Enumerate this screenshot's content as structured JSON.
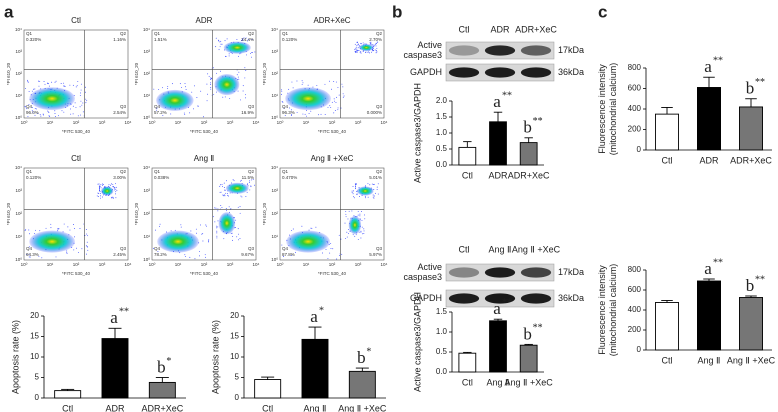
{
  "panel_labels": [
    "a",
    "b",
    "c"
  ],
  "flow": {
    "x_label": "*FITC 530_40",
    "y_label": "*PI 610_20",
    "axis_ticks": [
      "10⁰",
      "10¹",
      "10²",
      "10³",
      "10⁴"
    ],
    "quadrant_names": [
      "Q1",
      "Q2",
      "Q3",
      "Q4"
    ],
    "plots": [
      {
        "title": "Ctl",
        "quadrants": [
          "0.320%",
          "1.16%",
          "2.54%",
          "96.0%"
        ]
      },
      {
        "title": "ADR",
        "quadrants": [
          "1.51%",
          "24.4%",
          "16.9%",
          "57.2%"
        ]
      },
      {
        "title": "ADR+XeC",
        "quadrants": [
          "0.120%",
          "2.70%",
          "0.000%",
          "96.3%"
        ]
      },
      {
        "title": "Ctl",
        "quadrants": [
          "0.120%",
          "3.00%",
          "2.45%",
          "94.3%"
        ]
      },
      {
        "title": "Ang Ⅱ",
        "quadrants": [
          "0.038%",
          "11.5%",
          "9.67%",
          "78.2%"
        ]
      },
      {
        "title": "Ang Ⅱ +XeC",
        "quadrants": [
          "0.470%",
          "5.01%",
          "5.97%",
          "87.8%"
        ]
      }
    ]
  },
  "blots": [
    {
      "lanes": [
        "Ctl",
        "ADR",
        "ADR+XeC"
      ],
      "rows": [
        {
          "name": [
            "Active",
            "caspase3"
          ],
          "size": "17kDa"
        },
        {
          "name": [
            "GAPDH"
          ],
          "size": "36kDa"
        }
      ]
    },
    {
      "lanes": [
        "Ctl",
        "Ang Ⅱ",
        "Ang Ⅱ +XeC"
      ],
      "rows": [
        {
          "name": [
            "Active",
            "caspase3"
          ],
          "size": "17kDa"
        },
        {
          "name": [
            "GAPDH"
          ],
          "size": "36kDa"
        }
      ]
    }
  ],
  "chart_data": [
    {
      "type": "bar",
      "y_label": [
        "Apoptosis rate (%)"
      ],
      "categories": [
        "Ctl",
        "ADR",
        "ADR+XeC"
      ],
      "values": [
        1.8,
        14.5,
        3.8
      ],
      "errors": [
        0.3,
        2.5,
        1.2
      ],
      "colors": [
        "#ffffff",
        "#000000",
        "#767676"
      ],
      "value_annotations": [
        null,
        {
          "letter": "a",
          "stars": "**"
        },
        {
          "letter": "b",
          "stars": "*"
        }
      ],
      "ylim": [
        0,
        20
      ],
      "yticks": [
        0,
        5,
        10,
        15,
        20
      ]
    },
    {
      "type": "bar",
      "y_label": [
        "Apoptosis rate (%)"
      ],
      "categories": [
        "Ctl",
        "Ang Ⅱ",
        "Ang Ⅱ +XeC"
      ],
      "values": [
        4.5,
        14.3,
        6.5
      ],
      "errors": [
        0.6,
        3.0,
        0.8
      ],
      "colors": [
        "#ffffff",
        "#000000",
        "#767676"
      ],
      "value_annotations": [
        null,
        {
          "letter": "a",
          "stars": "*"
        },
        {
          "letter": "b",
          "stars": "*"
        }
      ],
      "ylim": [
        0,
        20
      ],
      "yticks": [
        0,
        5,
        10,
        15,
        20
      ]
    },
    {
      "type": "bar",
      "y_label": [
        "Active caspase3/GAPDH"
      ],
      "categories": [
        "Ctl",
        "ADR",
        "ADR+XeC"
      ],
      "values": [
        0.55,
        1.35,
        0.7
      ],
      "errors": [
        0.18,
        0.3,
        0.15
      ],
      "colors": [
        "#ffffff",
        "#000000",
        "#767676"
      ],
      "value_annotations": [
        null,
        {
          "letter": "a",
          "stars": "**"
        },
        {
          "letter": "b",
          "stars": "**"
        }
      ],
      "ylim": [
        0,
        2
      ],
      "yticks": [
        {
          "value": 0,
          "label": "0.0"
        },
        0.5,
        {
          "value": 1,
          "label": "1.0"
        },
        1.5,
        {
          "value": 2,
          "label": "2.0"
        }
      ]
    },
    {
      "type": "bar",
      "y_label": [
        "Active caspase3/GAPDH"
      ],
      "categories": [
        "Ctl",
        "Ang Ⅱ",
        "Ang Ⅱ +XeC"
      ],
      "values": [
        0.47,
        1.28,
        0.67
      ],
      "errors": [
        0.02,
        0.04,
        0.02
      ],
      "colors": [
        "#ffffff",
        "#000000",
        "#767676"
      ],
      "value_annotations": [
        null,
        {
          "letter": "a",
          "stars": "**"
        },
        {
          "letter": "b",
          "stars": "**"
        }
      ],
      "ylim": [
        0,
        1.5
      ],
      "yticks": [
        {
          "value": 0,
          "label": "0.0"
        },
        0.5,
        {
          "value": 1,
          "label": "1.0"
        },
        1.5
      ]
    },
    {
      "type": "bar",
      "y_label": [
        "Fluorescence intensity",
        "(mitochondrial calcium)"
      ],
      "categories": [
        "Ctl",
        "ADR",
        "ADR+XeC"
      ],
      "values": [
        350,
        610,
        420
      ],
      "errors": [
        65,
        100,
        80
      ],
      "colors": [
        "#ffffff",
        "#000000",
        "#767676"
      ],
      "value_annotations": [
        null,
        {
          "letter": "a",
          "stars": "**"
        },
        {
          "letter": "b",
          "stars": "**"
        }
      ],
      "ylim": [
        0,
        800
      ],
      "yticks": [
        0,
        200,
        400,
        600,
        800
      ]
    },
    {
      "type": "bar",
      "y_label": [
        "Fluorescence intensity",
        "(mitochondrial calcium)"
      ],
      "categories": [
        "Ctl",
        "Ang Ⅱ",
        "Ang Ⅱ +XeC"
      ],
      "values": [
        475,
        690,
        525
      ],
      "errors": [
        20,
        20,
        15
      ],
      "colors": [
        "#ffffff",
        "#000000",
        "#767676"
      ],
      "value_annotations": [
        null,
        {
          "letter": "a",
          "stars": "**"
        },
        {
          "letter": "b",
          "stars": "**"
        }
      ],
      "ylim": [
        0,
        800
      ],
      "yticks": [
        0,
        200,
        400,
        600,
        800
      ]
    }
  ]
}
